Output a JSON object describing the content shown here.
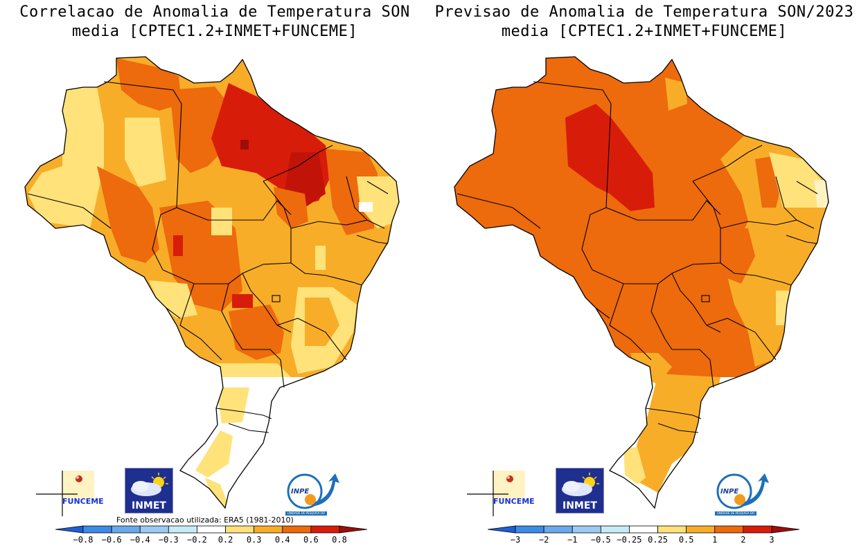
{
  "panels": [
    {
      "id": "correlation",
      "title_line1": "Correlacao de Anomalia de Temperatura SON",
      "title_line2": "media [CPTEC1.2+INMET+FUNCEME]",
      "source_note": "Fonte observacao utilizada: ERA5 (1981-2010)",
      "colorbar_ticks": [
        "-0.8",
        "-0.6",
        "-0.4",
        "-0.3",
        "-0.2",
        "0.2",
        "0.3",
        "0.4",
        "0.6",
        "0.8"
      ],
      "colorbar_colors": [
        "#1d5fd6",
        "#3c8be6",
        "#6aa9ec",
        "#9ccaf3",
        "#c6ecf9",
        "#ffffff",
        "#ffe27a",
        "#f8ad28",
        "#ed6a0d",
        "#d81c0a",
        "#9e0c0c"
      ]
    },
    {
      "id": "forecast",
      "title_line1": "Previsao de Anomalia de Temperatura SON/2023",
      "title_line2": "media [CPTEC1.2+INMET+FUNCEME]",
      "colorbar_ticks": [
        "-3",
        "-2",
        "-1",
        "-0.5",
        "-0.25",
        "0.25",
        "0.5",
        "1",
        "2",
        "3"
      ],
      "colorbar_colors": [
        "#1d5fd6",
        "#3c8be6",
        "#6aa9ec",
        "#9ccaf3",
        "#c6ecf9",
        "#ffffff",
        "#ffe27a",
        "#f8ad28",
        "#ed6a0d",
        "#d81c0a",
        "#9e0c0c"
      ]
    }
  ],
  "logos": {
    "funceme": "FUNCEME",
    "inmet": "INMET",
    "inpe": "INPE",
    "inpe_strip": "UNIDADE DE PESQUISA DO MCTI"
  }
}
